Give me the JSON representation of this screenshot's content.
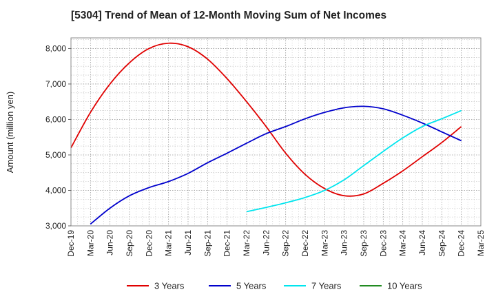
{
  "chart_data": {
    "type": "line",
    "title": "[5304]  Trend of Mean of 12-Month Moving Sum of Net Incomes",
    "xlabel": "",
    "ylabel": "Amount (million yen)",
    "ylim": [
      3000,
      8300
    ],
    "yticks": [
      3000,
      4000,
      5000,
      6000,
      7000,
      8000
    ],
    "ytick_labels": [
      "3,000",
      "4,000",
      "5,000",
      "6,000",
      "7,000",
      "8,000"
    ],
    "xticks": [
      "Dec-19",
      "Mar-20",
      "Jun-20",
      "Sep-20",
      "Dec-20",
      "Mar-21",
      "Jun-21",
      "Sep-21",
      "Dec-21",
      "Mar-22",
      "Jun-22",
      "Sep-22",
      "Dec-22",
      "Mar-23",
      "Jun-23",
      "Sep-23",
      "Dec-23",
      "Mar-24",
      "Jun-24",
      "Sep-24",
      "Dec-24",
      "Mar-25"
    ],
    "grid": true,
    "legend_position": "bottom",
    "series": [
      {
        "name": "3 Years",
        "color": "#e00000",
        "x": [
          "Dec-19",
          "Mar-20",
          "Jun-20",
          "Sep-20",
          "Dec-20",
          "Mar-21",
          "Jun-21",
          "Sep-21",
          "Dec-21",
          "Mar-22",
          "Jun-22",
          "Sep-22",
          "Dec-22",
          "Mar-23",
          "Jun-23",
          "Sep-23",
          "Dec-23",
          "Mar-24",
          "Jun-24",
          "Sep-24",
          "Dec-24"
        ],
        "values": [
          5200,
          6200,
          7000,
          7600,
          8000,
          8150,
          8050,
          7700,
          7150,
          6500,
          5800,
          5050,
          4450,
          4050,
          3850,
          3900,
          4200,
          4550,
          4950,
          5350,
          5800
        ]
      },
      {
        "name": "5 Years",
        "color": "#0000cc",
        "x": [
          "Mar-20",
          "Jun-20",
          "Sep-20",
          "Dec-20",
          "Mar-21",
          "Jun-21",
          "Sep-21",
          "Dec-21",
          "Mar-22",
          "Jun-22",
          "Sep-22",
          "Dec-22",
          "Mar-23",
          "Jun-23",
          "Sep-23",
          "Dec-23",
          "Mar-24",
          "Jun-24",
          "Sep-24",
          "Dec-24"
        ],
        "values": [
          3050,
          3500,
          3850,
          4080,
          4250,
          4480,
          4780,
          5050,
          5330,
          5600,
          5800,
          6020,
          6200,
          6330,
          6370,
          6300,
          6120,
          5900,
          5650,
          5400
        ]
      },
      {
        "name": "7 Years",
        "color": "#00e5ee",
        "x": [
          "Mar-22",
          "Jun-22",
          "Sep-22",
          "Dec-22",
          "Mar-23",
          "Jun-23",
          "Sep-23",
          "Dec-23",
          "Mar-24",
          "Jun-24",
          "Sep-24",
          "Dec-24"
        ],
        "values": [
          3400,
          3520,
          3650,
          3800,
          4000,
          4300,
          4700,
          5100,
          5480,
          5800,
          6020,
          6250
        ]
      },
      {
        "name": "10 Years",
        "color": "#228b22",
        "x": [],
        "values": []
      }
    ]
  }
}
